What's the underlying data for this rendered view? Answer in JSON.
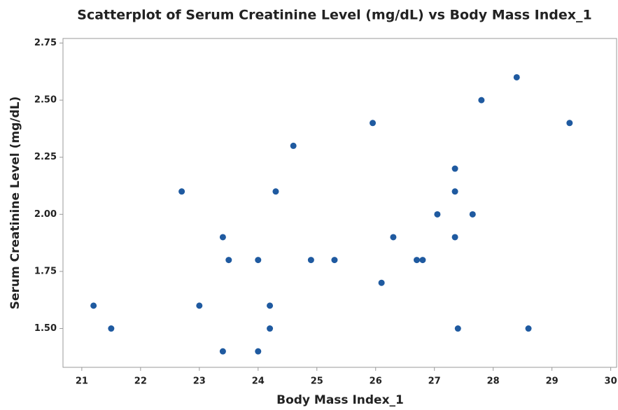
{
  "chart_data": {
    "type": "scatter",
    "title": "Scatterplot of Serum Creatinine Level (mg/dL) vs Body Mass Index_1",
    "x_label": "Body Mass Index_1",
    "y_label": "Serum Creatinine Level (mg/dL)",
    "color": "#1f5aa0",
    "x": [
      21.2,
      21.5,
      22.7,
      23.0,
      23.4,
      23.4,
      23.5,
      24.0,
      24.0,
      24.2,
      24.2,
      24.3,
      24.6,
      24.9,
      25.3,
      25.95,
      26.1,
      26.3,
      26.7,
      26.8,
      27.05,
      27.35,
      27.35,
      27.35,
      27.4,
      27.65,
      27.8,
      28.4,
      28.6,
      29.3
    ],
    "values": [
      1.6,
      1.5,
      2.1,
      1.6,
      1.9,
      1.4,
      1.8,
      1.8,
      1.4,
      1.6,
      1.5,
      2.1,
      2.3,
      1.8,
      1.8,
      2.4,
      1.7,
      1.9,
      1.8,
      1.8,
      2.0,
      2.2,
      2.1,
      1.9,
      1.5,
      2.0,
      2.5,
      2.6,
      1.5,
      2.4
    ],
    "xlim": [
      20.68,
      30.1
    ],
    "ylim": [
      1.33,
      2.77
    ],
    "xticks": [
      21,
      22,
      23,
      24,
      25,
      26,
      27,
      28,
      29,
      30
    ],
    "yticks": [
      {
        "value": 1.5,
        "label": "1.50"
      },
      {
        "value": 1.75,
        "label": "1.75"
      },
      {
        "value": 2.0,
        "label": "2.00"
      },
      {
        "value": 2.25,
        "label": "2.25"
      },
      {
        "value": 2.5,
        "label": "2.50"
      },
      {
        "value": 2.75,
        "label": "2.75"
      }
    ],
    "grid": false
  }
}
